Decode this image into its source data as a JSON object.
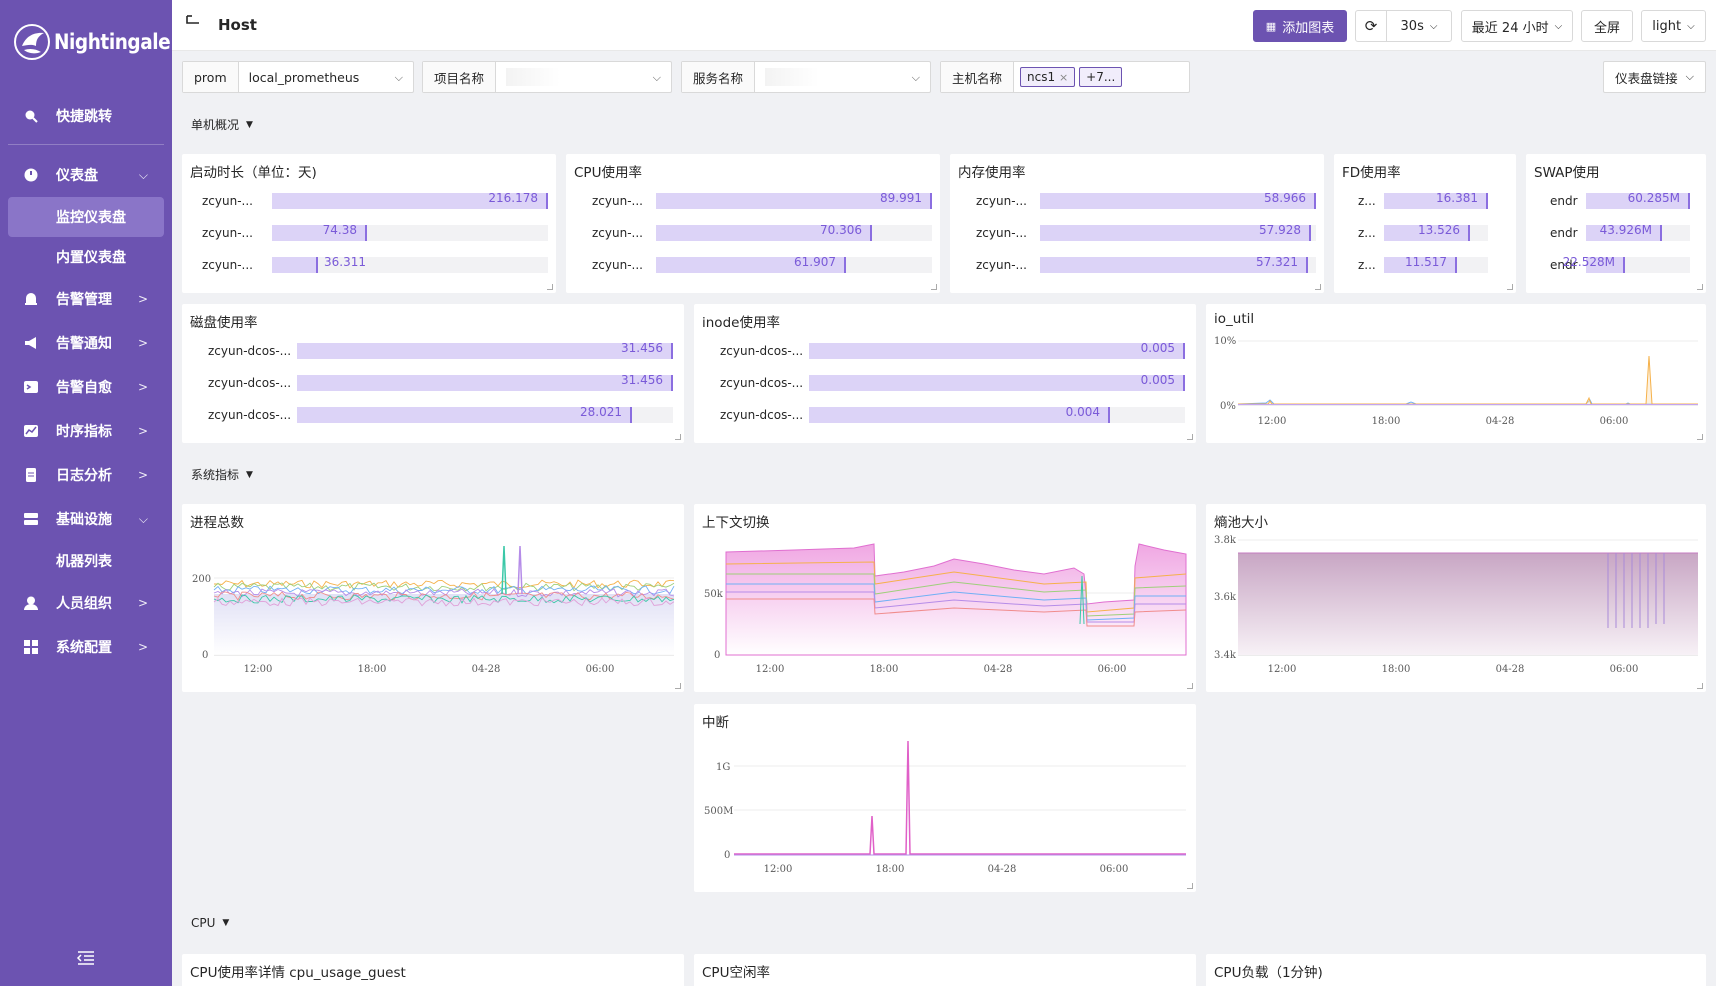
{
  "app": {
    "name": "Nightingale",
    "page_title": "Host"
  },
  "sidebar": {
    "items": [
      {
        "label": "快捷跳转",
        "icon": "search-icon"
      },
      {
        "label": "仪表盘",
        "icon": "dashboard-icon",
        "expanded": true
      },
      {
        "label": "监控仪表盘",
        "sub": true,
        "active": true
      },
      {
        "label": "内置仪表盘",
        "sub": true
      },
      {
        "label": "告警管理",
        "icon": "bell-icon"
      },
      {
        "label": "告警通知",
        "icon": "megaphone-icon"
      },
      {
        "label": "告警自愈",
        "icon": "terminal-icon"
      },
      {
        "label": "时序指标",
        "icon": "line-chart-icon"
      },
      {
        "label": "日志分析",
        "icon": "file-icon"
      },
      {
        "label": "基础设施",
        "icon": "server-icon",
        "expanded": true
      },
      {
        "label": "机器列表",
        "sub": true
      },
      {
        "label": "人员组织",
        "icon": "user-icon"
      },
      {
        "label": "系统配置",
        "icon": "grid-icon"
      }
    ]
  },
  "header": {
    "add_chart": "添加图表",
    "refresh_interval": "30s",
    "time_range": "最近 24 小时",
    "fullscreen": "全屏",
    "theme": "light"
  },
  "filters": {
    "datasource_type": "prom",
    "datasource_value": "local_prometheus",
    "project_label": "项目名称",
    "service_label": "服务名称",
    "host_label": "主机名称",
    "host_tag": "ncs1",
    "host_more": "+7...",
    "dashboard_link": "仪表盘链接"
  },
  "sections": {
    "overview": "单机概况",
    "system": "系统指标",
    "cpu": "CPU"
  },
  "panels": {
    "uptime": {
      "title": "启动时长（单位：天)",
      "rows": [
        {
          "name": "zcyun-...",
          "value": "216.178",
          "frac": 1.0
        },
        {
          "name": "zcyun-...",
          "value": "74.38",
          "frac": 0.344
        },
        {
          "name": "zcyun-...",
          "value": "36.311",
          "frac": 0.168
        }
      ]
    },
    "cpu_usage": {
      "title": "CPU使用率",
      "rows": [
        {
          "name": "zcyun-...",
          "value": "89.991",
          "frac": 1.0
        },
        {
          "name": "zcyun-...",
          "value": "70.306",
          "frac": 0.781
        },
        {
          "name": "zcyun-...",
          "value": "61.907",
          "frac": 0.688
        }
      ]
    },
    "mem_usage": {
      "title": "内存使用率",
      "rows": [
        {
          "name": "zcyun-...",
          "value": "58.966",
          "frac": 1.0
        },
        {
          "name": "zcyun-...",
          "value": "57.928",
          "frac": 0.982
        },
        {
          "name": "zcyun-...",
          "value": "57.321",
          "frac": 0.972
        }
      ]
    },
    "fd_usage": {
      "title": "FD使用率",
      "rows": [
        {
          "name": "z...",
          "value": "16.381",
          "frac": 1.0
        },
        {
          "name": "z...",
          "value": "13.526",
          "frac": 0.826
        },
        {
          "name": "z...",
          "value": "11.517",
          "frac": 0.703
        }
      ]
    },
    "swap_usage": {
      "title": "SWAP使用",
      "rows": [
        {
          "name": "endr",
          "value": "60.285M",
          "frac": 1.0
        },
        {
          "name": "endr",
          "value": "43.926M",
          "frac": 0.729
        },
        {
          "name": "endr",
          "value": "22.528M",
          "frac": 0.374
        }
      ]
    },
    "disk_usage": {
      "title": "磁盘使用率",
      "rows": [
        {
          "name": "zcyun-dcos-...",
          "value": "31.456",
          "frac": 1.0
        },
        {
          "name": "zcyun-dcos-...",
          "value": "31.456",
          "frac": 1.0
        },
        {
          "name": "zcyun-dcos-...",
          "value": "28.021",
          "frac": 0.891
        }
      ]
    },
    "inode_usage": {
      "title": "inode使用率",
      "rows": [
        {
          "name": "zcyun-dcos-...",
          "value": "0.005",
          "frac": 1.0
        },
        {
          "name": "zcyun-dcos-...",
          "value": "0.005",
          "frac": 1.0
        },
        {
          "name": "zcyun-dcos-...",
          "value": "0.004",
          "frac": 0.8
        }
      ]
    },
    "io_util": {
      "title": "io_util",
      "yticks": [
        "10%",
        "0%"
      ],
      "xticks": [
        "12:00",
        "18:00",
        "04-28",
        "06:00"
      ]
    },
    "proc_total": {
      "title": "进程总数",
      "yticks": [
        "200",
        "0"
      ],
      "xticks": [
        "12:00",
        "18:00",
        "04-28",
        "06:00"
      ]
    },
    "ctx_switch": {
      "title": "上下文切换",
      "yticks": [
        "50k",
        "0"
      ],
      "xticks": [
        "12:00",
        "18:00",
        "04-28",
        "06:00"
      ]
    },
    "entropy": {
      "title": "熵池大小",
      "yticks": [
        "3.8k",
        "3.6k",
        "3.4k"
      ],
      "xticks": [
        "12:00",
        "18:00",
        "04-28",
        "06:00"
      ]
    },
    "interrupts": {
      "title": "中断",
      "yticks": [
        "1G",
        "500M",
        "0"
      ],
      "xticks": [
        "12:00",
        "18:00",
        "04-28",
        "06:00"
      ]
    },
    "cpu_guest": {
      "title": "CPU使用率详情 cpu_usage_guest"
    },
    "cpu_idle": {
      "title": "CPU空闲率"
    },
    "cpu_load": {
      "title": "CPU负载（1分钟)"
    }
  },
  "colors": {
    "sidebar": "#6c53b1",
    "accent": "#6c53b1",
    "bar_fill": "#dcd3f7",
    "bar_edge": "#8b6ee0"
  }
}
